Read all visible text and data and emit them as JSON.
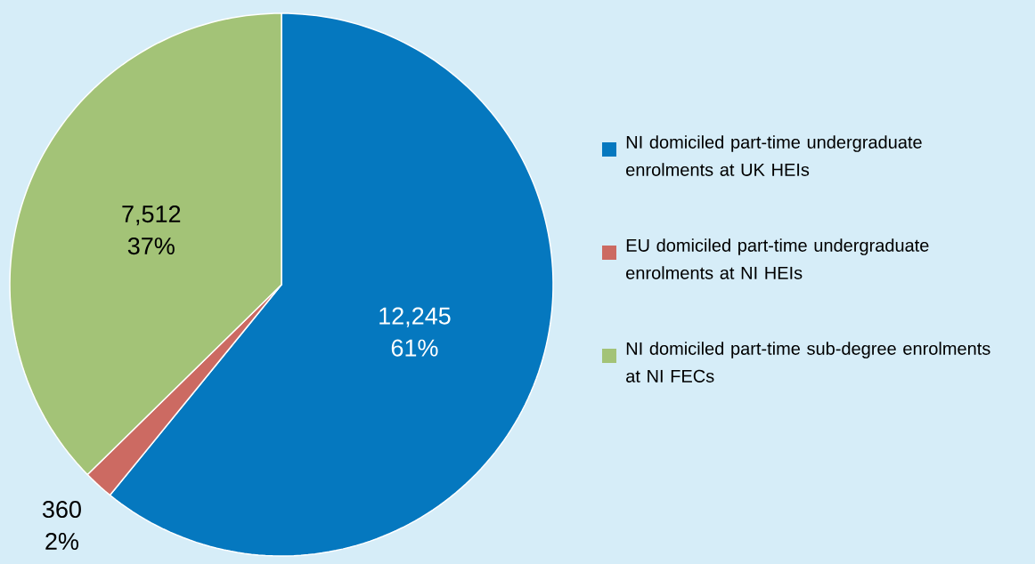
{
  "chart_data": {
    "type": "pie",
    "categories": [
      "NI domiciled part-time undergraduate enrolments at UK HEIs",
      "EU domiciled part-time undergraduate enrolments at NI HEIs",
      "NI domiciled part-time sub-degree enrolments at NI FECs"
    ],
    "values": [
      12245,
      360,
      7512
    ],
    "value_labels": [
      "12,245",
      "360",
      "7,512"
    ],
    "annotations": [
      "61%",
      "2%",
      "37%"
    ],
    "colors": [
      "#0578bf",
      "#cc6a62",
      "#a3c377"
    ],
    "legend": "right"
  }
}
